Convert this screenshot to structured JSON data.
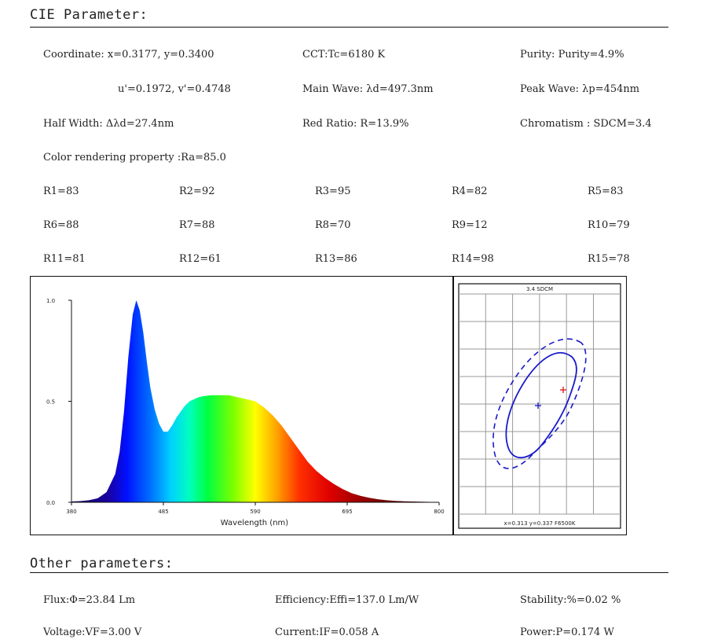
{
  "cie": {
    "title": "CIE Parameter:",
    "coordinate": "Coordinate: x=0.3177, y=0.3400",
    "cct": "CCT:Tc=6180 K",
    "purity": "Purity: Purity=4.9%",
    "uv": "u'=0.1972, v'=0.4748",
    "main_wave": "Main Wave: λd=497.3nm",
    "peak_wave": "Peak Wave: λp=454nm",
    "half_width": "Half Width: Δλd=27.4nm",
    "red_ratio": "Red Ratio: R=13.9%",
    "chromatism": "Chromatism : SDCM=3.4",
    "cri": "Color rendering property :Ra=85.0",
    "r_values": [
      "R1=83",
      "R2=92",
      "R3=95",
      "R4=82",
      "R5=83",
      "R6=88",
      "R7=88",
      "R8=70",
      "R9=12",
      "R10=79",
      "R11=81",
      "R12=61",
      "R13=86",
      "R14=98",
      "R15=78"
    ]
  },
  "chart_data": [
    {
      "type": "area",
      "title": "",
      "xlabel": "Wavelength (nm)",
      "ylabel": "",
      "xlim": [
        380,
        800
      ],
      "ylim": [
        0,
        1.0
      ],
      "x_ticks": [
        "380",
        "485",
        "590",
        "695",
        "800"
      ],
      "y_ticks": [
        "0.0",
        "0.5",
        "1.0"
      ],
      "x": [
        380,
        390,
        400,
        410,
        420,
        430,
        435,
        440,
        445,
        450,
        454,
        458,
        462,
        466,
        470,
        475,
        480,
        485,
        490,
        495,
        500,
        505,
        510,
        515,
        520,
        525,
        530,
        540,
        550,
        560,
        570,
        580,
        590,
        600,
        610,
        620,
        630,
        640,
        650,
        660,
        670,
        680,
        690,
        700,
        710,
        720,
        730,
        740,
        750,
        760,
        770,
        780,
        790,
        800
      ],
      "values": [
        0.004,
        0.006,
        0.01,
        0.02,
        0.05,
        0.14,
        0.25,
        0.45,
        0.72,
        0.93,
        1.0,
        0.95,
        0.84,
        0.7,
        0.57,
        0.46,
        0.39,
        0.35,
        0.35,
        0.38,
        0.42,
        0.45,
        0.48,
        0.5,
        0.51,
        0.52,
        0.525,
        0.53,
        0.53,
        0.53,
        0.52,
        0.51,
        0.5,
        0.47,
        0.43,
        0.38,
        0.32,
        0.26,
        0.2,
        0.155,
        0.12,
        0.09,
        0.065,
        0.045,
        0.032,
        0.022,
        0.015,
        0.01,
        0.007,
        0.005,
        0.004,
        0.003,
        0.002,
        0.002
      ],
      "grid": false
    },
    {
      "type": "scatter",
      "title": "3.4 SDCM",
      "footer": "x=0.313 y=0.337 F6500K",
      "center": {
        "x": 0.313,
        "y": 0.337,
        "color": "#2222cc"
      },
      "measured": {
        "x": 0.3177,
        "y": 0.34,
        "color": "#dd2222"
      },
      "grid": true,
      "ellipse_color": "#1a1acc"
    }
  ],
  "other": {
    "title": "Other parameters:",
    "flux": "Flux:Φ=23.84 Lm",
    "efficiency": "Efficiency:Effi=137.0 Lm/W",
    "stability": "Stability:%=0.02 %",
    "voltage": "Voltage:VF=3.00 V",
    "current": "Current:IF=0.058 A",
    "power": "Power:P=0.174 W"
  }
}
